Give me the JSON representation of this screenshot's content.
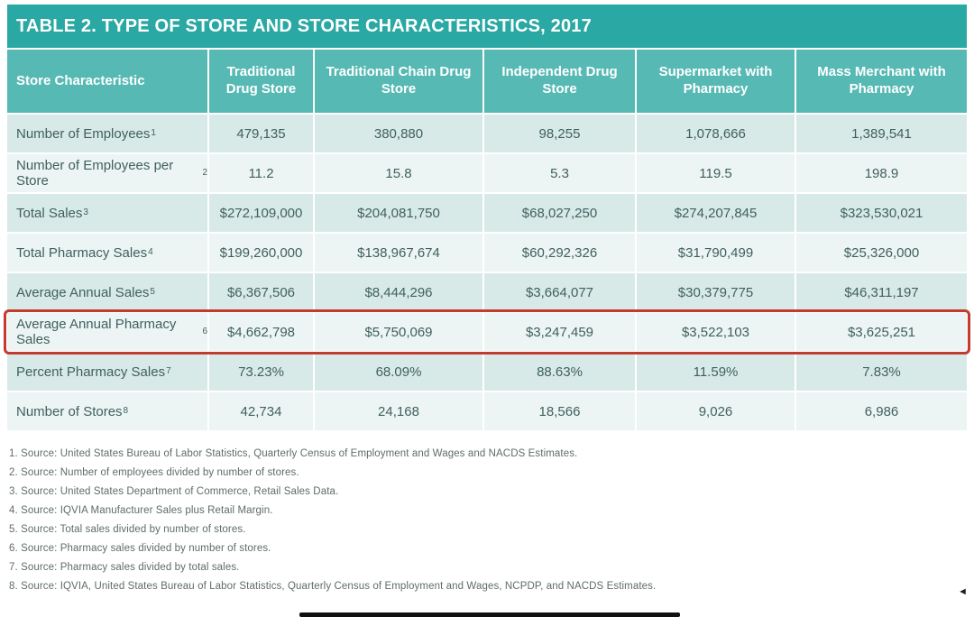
{
  "colors": {
    "title_bar": "#2aa8a3",
    "header_row": "#57b9b4",
    "row_stripe_dark": "#d8eae8",
    "row_stripe_light": "#ecf5f3",
    "body_text": "#40605f",
    "highlight_border": "#c23b2e"
  },
  "chart_data": {
    "type": "table",
    "title": "TABLE 2. TYPE OF STORE AND STORE CHARACTERISTICS, 2017",
    "columns": [
      "Store Characteristic",
      "Traditional Drug Store",
      "Traditional Chain Drug Store",
      "Independent Drug Store",
      "Supermarket with Pharmacy",
      "Mass Merchant with Pharmacy"
    ],
    "rows": [
      {
        "label": "Number of Employees",
        "sup": "1",
        "highlighted": false,
        "values": [
          "479,135",
          "380,880",
          "98,255",
          "1,078,666",
          "1,389,541"
        ]
      },
      {
        "label": "Number of Employees per Store",
        "sup": "2",
        "highlighted": false,
        "values": [
          "11.2",
          "15.8",
          "5.3",
          "119.5",
          "198.9"
        ]
      },
      {
        "label": "Total Sales",
        "sup": "3",
        "highlighted": false,
        "values": [
          "$272,109,000",
          "$204,081,750",
          "$68,027,250",
          "$274,207,845",
          "$323,530,021"
        ]
      },
      {
        "label": "Total Pharmacy Sales",
        "sup": "4",
        "highlighted": false,
        "values": [
          "$199,260,000",
          "$138,967,674",
          "$60,292,326",
          "$31,790,499",
          "$25,326,000"
        ]
      },
      {
        "label": "Average Annual Sales",
        "sup": "5",
        "highlighted": false,
        "values": [
          "$6,367,506",
          "$8,444,296",
          "$3,664,077",
          "$30,379,775",
          "$46,311,197"
        ]
      },
      {
        "label": "Average Annual Pharmacy Sales",
        "sup": "6",
        "highlighted": true,
        "values": [
          "$4,662,798",
          "$5,750,069",
          "$3,247,459",
          "$3,522,103",
          "$3,625,251"
        ]
      },
      {
        "label": "Percent Pharmacy Sales",
        "sup": "7",
        "highlighted": false,
        "values": [
          "73.23%",
          "68.09%",
          "88.63%",
          "11.59%",
          "7.83%"
        ]
      },
      {
        "label": "Number of Stores",
        "sup": "8",
        "highlighted": false,
        "values": [
          "42,734",
          "24,168",
          "18,566",
          "9,026",
          "6,986"
        ]
      }
    ]
  },
  "footnotes": [
    "1. Source: United States Bureau of Labor Statistics, Quarterly Census of Employment and Wages and NACDS Estimates.",
    "2. Source: Number of employees divided by number of stores.",
    "3. Source: United States Department of Commerce, Retail Sales Data.",
    "4. Source: IQVIA Manufacturer Sales plus Retail Margin.",
    "5. Source: Total sales divided by number of stores.",
    "6. Source: Pharmacy sales divided by number of stores.",
    "7. Source: Pharmacy sales divided by total sales.",
    "8. Source: IQVIA, United States Bureau of Labor Statistics, Quarterly Census of Employment and Wages, NCPDP, and NACDS Estimates."
  ],
  "decorations": {
    "cursor_arrow": "◄"
  }
}
